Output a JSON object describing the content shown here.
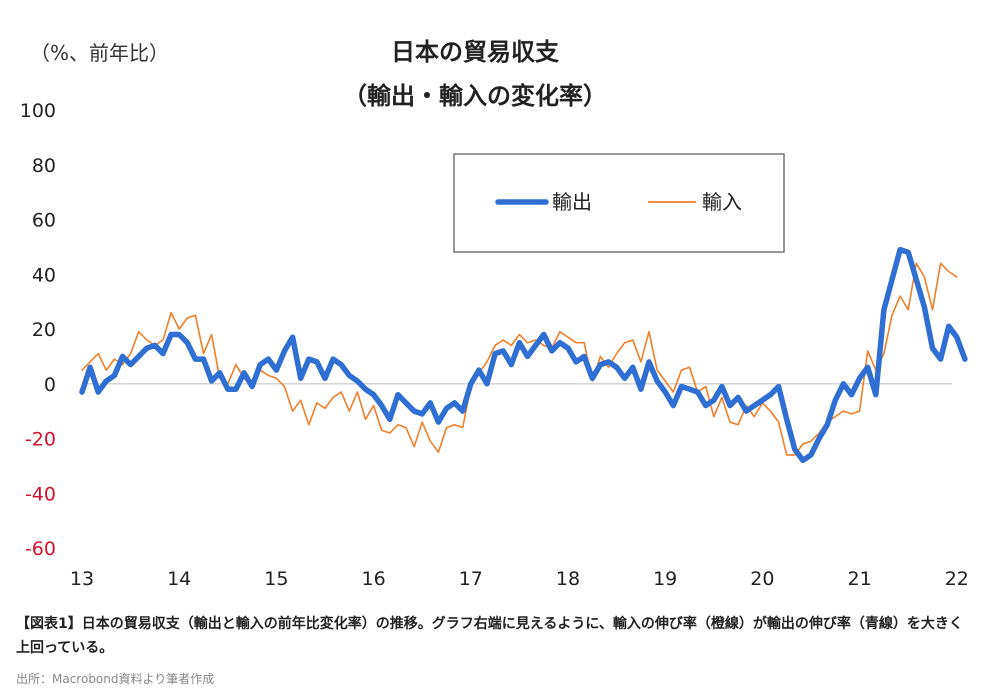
{
  "chart_data": {
    "type": "line",
    "title_line1": "日本の貿易収支",
    "title_line2": "（輸出・輸入の変化率）",
    "ylabel": "（%、前年比）",
    "ylim": [
      -60,
      100
    ],
    "y_ticks": [
      100,
      80,
      60,
      40,
      20,
      0,
      -20,
      -40,
      -60
    ],
    "x_tick_labels": [
      "13",
      "14",
      "15",
      "16",
      "17",
      "18",
      "19",
      "20",
      "21",
      "22"
    ],
    "x_start_year": 2013,
    "legend_placement": "top-right",
    "series": [
      {
        "name": "輸出",
        "color": "#2f6fd4",
        "values": [
          -3,
          6,
          -3,
          1,
          3,
          10,
          7,
          10,
          13,
          14,
          11,
          18,
          18,
          15,
          9,
          9,
          1,
          4,
          -2,
          -2,
          4,
          -1,
          7,
          9,
          5,
          12,
          17,
          2,
          9,
          8,
          2,
          9,
          7,
          3,
          1,
          -2,
          -4,
          -8,
          -13,
          -4,
          -7,
          -10,
          -11,
          -7,
          -14,
          -9,
          -7,
          -10,
          0,
          5,
          0,
          11,
          12,
          7,
          15,
          10,
          14,
          18,
          12,
          15,
          13,
          8,
          10,
          2,
          7,
          8,
          6,
          2,
          6,
          -2,
          8,
          1,
          -3,
          -8,
          -1,
          -2,
          -3,
          -8,
          -6,
          -1,
          -8,
          -5,
          -10,
          -8,
          -6,
          -4,
          -1,
          -13,
          -24,
          -28,
          -26,
          -20,
          -15,
          -6,
          0,
          -4,
          2,
          6,
          -4,
          27,
          38,
          49,
          48,
          38,
          28,
          13,
          9,
          21,
          17,
          9
        ]
      },
      {
        "name": "輸入",
        "color": "#f07f2a",
        "values": [
          5,
          8,
          11,
          5,
          9,
          7,
          11,
          19,
          16,
          14,
          16,
          26,
          20,
          24,
          25,
          11,
          18,
          2,
          0,
          7,
          2,
          -1,
          5,
          3,
          2,
          -1,
          -10,
          -6,
          -15,
          -7,
          -9,
          -5,
          -3,
          -10,
          -3,
          -13,
          -8,
          -17,
          -18,
          -15,
          -16,
          -23,
          -14,
          -21,
          -25,
          -16,
          -15,
          -16,
          -1,
          4,
          8,
          14,
          16,
          14,
          18,
          15,
          16,
          14,
          13,
          19,
          17,
          15,
          15,
          1,
          10,
          6,
          11,
          15,
          16,
          8,
          19,
          5,
          1,
          -3,
          5,
          6,
          -3,
          -1,
          -12,
          -5,
          -14,
          -15,
          -8,
          -12,
          -7,
          -10,
          -14,
          -26,
          -26,
          -22,
          -21,
          -18,
          -14,
          -12,
          -10,
          -11,
          -10,
          12,
          5,
          11,
          25,
          32,
          27,
          44,
          39,
          27,
          44,
          41,
          39
        ]
      }
    ]
  },
  "caption": "【図表1】日本の貿易収支（輸出と輸入の前年比変化率）の推移。グラフ右端に見えるように、輸入の伸び率（橙線）が輸出の伸び率（青線）を大きく上回っている。",
  "source": "出所：Macrobond資料より筆者作成"
}
